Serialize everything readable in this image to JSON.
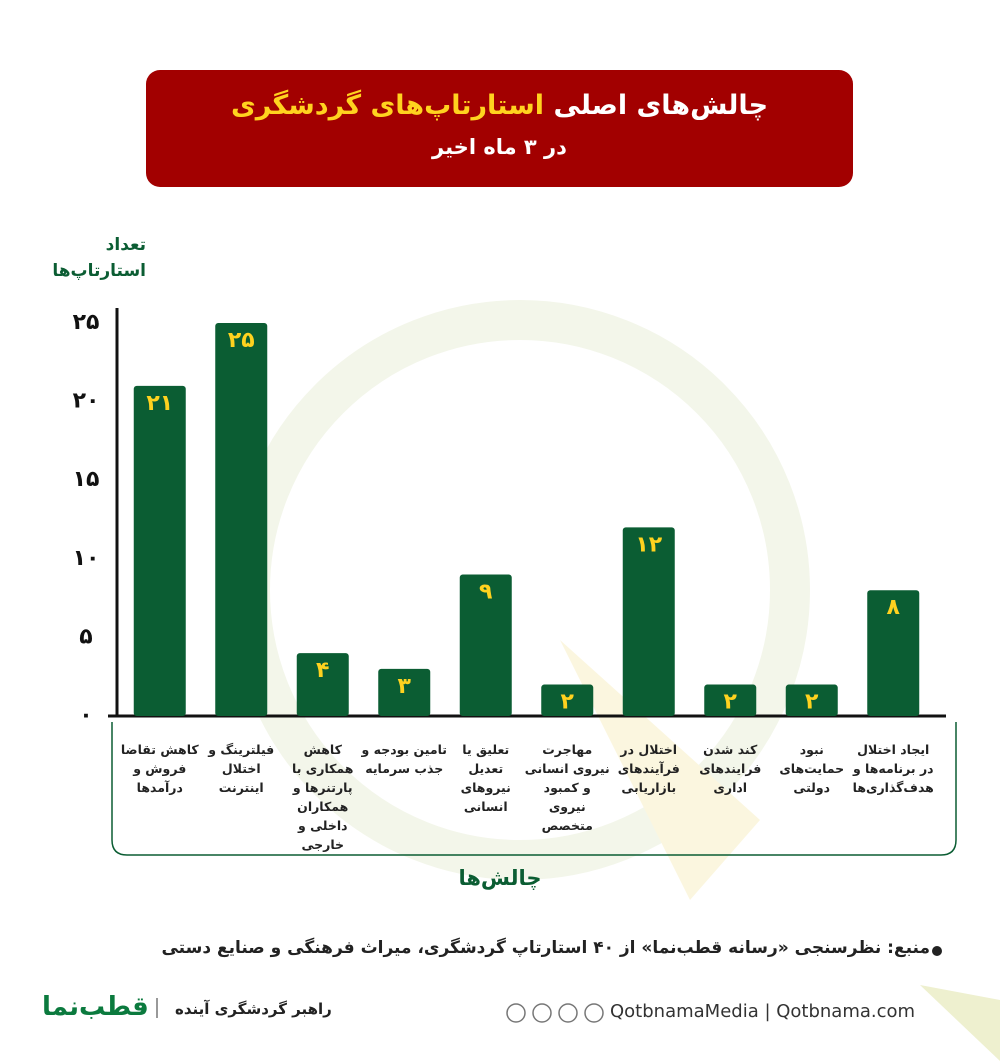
{
  "chart_data": {
    "type": "bar",
    "title_part1": "چالش‌های اصلی",
    "title_part2": "استارتاپ‌های گردشگری",
    "subtitle": "در ۳ ماه اخیر",
    "y_axis_label_line1": "تعداد",
    "y_axis_label_line2": "استارتاپ‌ها",
    "x_axis_label": "چالش‌ها",
    "categories": [
      "کاهش تقاضا فروش و درآمدها",
      "فیلترینگ و اختلال اینترنت",
      "کاهش همکاری با پارتنرها و همکاران داخلی و خارجی",
      "تامین بودجه و جذب سرمایه",
      "تعلیق یا تعدیل نیروهای انسانی",
      "مهاجرت نیروی انسانی و کمبود نیروی متخصص",
      "اختلال در فرآیندهای بازاریابی",
      "کند شدن فرایندهای اداری",
      "نبود حمایت‌های دولتی",
      "ایجاد اختلال در برنامه‌ها و هدف‌گذاری‌ها"
    ],
    "values": [
      21,
      25,
      4,
      3,
      9,
      2,
      12,
      2,
      2,
      8
    ],
    "value_labels": [
      "۲۱",
      "۲۵",
      "۴",
      "۳",
      "۹",
      "۲",
      "۱۲",
      "۲",
      "۲",
      "۸"
    ],
    "color": "#0b5d33",
    "value_label_color": "#ffd21f",
    "ylim": [
      0,
      25
    ],
    "yticks": [
      {
        "value": 0,
        "label": "۰"
      },
      {
        "value": 5,
        "label": "۵"
      },
      {
        "value": 10,
        "label": "۱۰"
      },
      {
        "value": 15,
        "label": "۱۵"
      },
      {
        "value": 20,
        "label": "۲۰"
      },
      {
        "value": 25,
        "label": "۲۵"
      }
    ],
    "grid": false,
    "source": "منبع: نظرسنجی «رسانه قطب‌نما» از ۴۰ استارتاپ گردشگری، میراث فرهنگی و صنایع دستی"
  },
  "footer": {
    "logo": "قطب‌نما",
    "slogan": "راهبر گردشگری آینده",
    "website": "QotbnamaMedia  |  Qotbnama.com"
  }
}
